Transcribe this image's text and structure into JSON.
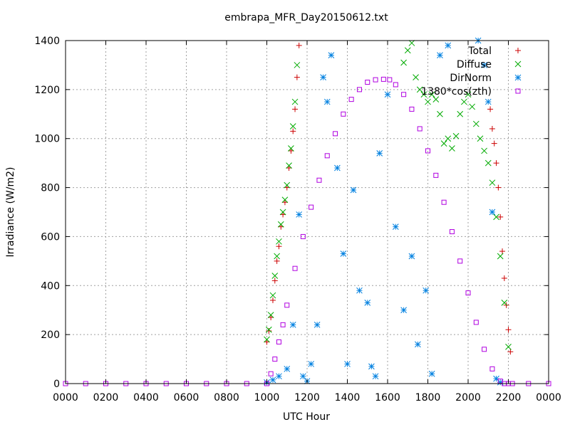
{
  "chart_data": {
    "type": "scatter",
    "title": "embrapa_MFR_Day20150612.txt",
    "xlabel": "UTC Hour",
    "ylabel": "Irradiance (W/m2)",
    "xlim": [
      0,
      24
    ],
    "ylim": [
      0,
      1400
    ],
    "x_ticks": [
      "0000",
      "0200",
      "0400",
      "0600",
      "0800",
      "1000",
      "1200",
      "1400",
      "1600",
      "1800",
      "2000",
      "2200",
      "0000"
    ],
    "y_ticks": [
      "0",
      "200",
      "400",
      "600",
      "800",
      "1000",
      "1200",
      "1400"
    ],
    "grid": true,
    "legend_position": "top-right",
    "series": [
      {
        "name": "Total",
        "marker": "plus",
        "color": "#cc0000",
        "x": [
          10.0,
          10.1,
          10.2,
          10.3,
          10.4,
          10.5,
          10.6,
          10.7,
          10.8,
          10.9,
          11.0,
          11.1,
          11.2,
          11.3,
          11.4,
          11.5,
          11.6,
          21.1,
          21.2,
          21.3,
          21.4,
          21.5,
          21.6,
          21.7,
          21.8,
          21.9,
          22.0,
          22.1
        ],
        "y": [
          170,
          215,
          270,
          340,
          420,
          500,
          560,
          640,
          690,
          740,
          800,
          880,
          950,
          1030,
          1120,
          1250,
          1380,
          1120,
          1040,
          980,
          900,
          800,
          680,
          540,
          430,
          320,
          220,
          130
        ]
      },
      {
        "name": "Diffuse",
        "marker": "cross",
        "color": "#00aa00",
        "x": [
          10.0,
          10.1,
          10.2,
          10.3,
          10.4,
          10.5,
          10.6,
          10.7,
          10.8,
          10.9,
          11.0,
          11.1,
          11.2,
          11.3,
          11.4,
          11.5,
          16.8,
          17.0,
          17.2,
          17.4,
          17.6,
          17.8,
          18.0,
          18.2,
          18.4,
          18.6,
          18.8,
          19.0,
          19.2,
          19.4,
          19.6,
          19.8,
          20.0,
          20.2,
          20.4,
          20.6,
          20.8,
          21.0,
          21.2,
          21.4,
          21.6,
          21.8,
          22.0
        ],
        "y": [
          180,
          220,
          280,
          360,
          440,
          520,
          580,
          650,
          700,
          750,
          810,
          890,
          960,
          1050,
          1150,
          1300,
          1310,
          1360,
          1390,
          1250,
          1200,
          1180,
          1150,
          1180,
          1160,
          1100,
          980,
          1000,
          960,
          1010,
          1100,
          1150,
          1180,
          1130,
          1060,
          1000,
          950,
          900,
          820,
          680,
          520,
          330,
          150
        ]
      },
      {
        "name": "DirNorm",
        "marker": "star",
        "color": "#0080e0",
        "x": [
          10.0,
          10.3,
          10.6,
          11.0,
          11.3,
          11.6,
          11.8,
          12.0,
          12.2,
          12.5,
          12.8,
          13.0,
          13.2,
          13.5,
          13.8,
          14.0,
          14.3,
          14.6,
          15.0,
          15.2,
          15.4,
          15.6,
          16.0,
          16.4,
          16.8,
          17.2,
          17.5,
          17.9,
          18.2,
          18.6,
          19.0,
          20.5,
          20.8,
          21.0,
          21.2,
          21.4,
          21.6
        ],
        "y": [
          5,
          15,
          30,
          60,
          240,
          690,
          30,
          10,
          80,
          240,
          1250,
          1150,
          1340,
          880,
          530,
          80,
          790,
          380,
          330,
          70,
          30,
          940,
          1180,
          640,
          300,
          520,
          160,
          380,
          40,
          1340,
          1380,
          1400,
          1300,
          1150,
          700,
          20,
          5
        ]
      },
      {
        "name": "1380*cos(zth)",
        "marker": "square",
        "color": "#b000e0",
        "x": [
          0,
          1,
          2,
          3,
          4,
          5,
          6,
          7,
          8,
          9,
          10.0,
          10.2,
          10.4,
          10.6,
          10.8,
          11.0,
          11.4,
          11.8,
          12.2,
          12.6,
          13.0,
          13.4,
          13.8,
          14.2,
          14.6,
          15.0,
          15.4,
          15.8,
          16.1,
          16.4,
          16.8,
          17.2,
          17.6,
          18.0,
          18.4,
          18.8,
          19.2,
          19.6,
          20.0,
          20.4,
          20.8,
          21.2,
          21.6,
          21.8,
          22.0,
          22.2,
          23,
          24
        ],
        "y": [
          0,
          0,
          0,
          0,
          0,
          0,
          0,
          0,
          0,
          0,
          0,
          40,
          100,
          170,
          240,
          320,
          470,
          600,
          720,
          830,
          930,
          1020,
          1100,
          1160,
          1200,
          1230,
          1240,
          1242,
          1240,
          1220,
          1180,
          1120,
          1040,
          950,
          850,
          740,
          620,
          500,
          370,
          250,
          140,
          60,
          10,
          0,
          0,
          0,
          0,
          0
        ]
      }
    ]
  }
}
